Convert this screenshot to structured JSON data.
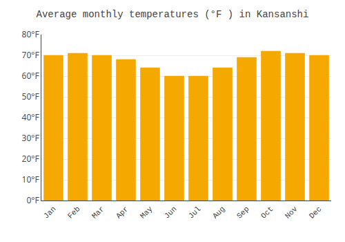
{
  "chart_data": {
    "type": "bar",
    "title": "Average monthly temperatures (°F ) in Kansanshi",
    "categories": [
      "Jan",
      "Feb",
      "Mar",
      "Apr",
      "May",
      "Jun",
      "Jul",
      "Aug",
      "Sep",
      "Oct",
      "Nov",
      "Dec"
    ],
    "values": [
      70,
      71,
      70,
      68,
      64,
      60,
      60,
      64,
      69,
      72,
      71,
      70
    ],
    "color": "#F5A800",
    "ylim": [
      0,
      80
    ],
    "yticks": [
      {
        "value": 0,
        "label": "0°F"
      },
      {
        "value": 10,
        "label": "10°F"
      },
      {
        "value": 20,
        "label": "20°F"
      },
      {
        "value": 30,
        "label": "30°F"
      },
      {
        "value": 40,
        "label": "40°F"
      },
      {
        "value": 50,
        "label": "50°F"
      },
      {
        "value": 60,
        "label": "60°F"
      },
      {
        "value": 70,
        "label": "70°F"
      },
      {
        "value": 80,
        "label": "80°F"
      }
    ],
    "grid": true
  }
}
